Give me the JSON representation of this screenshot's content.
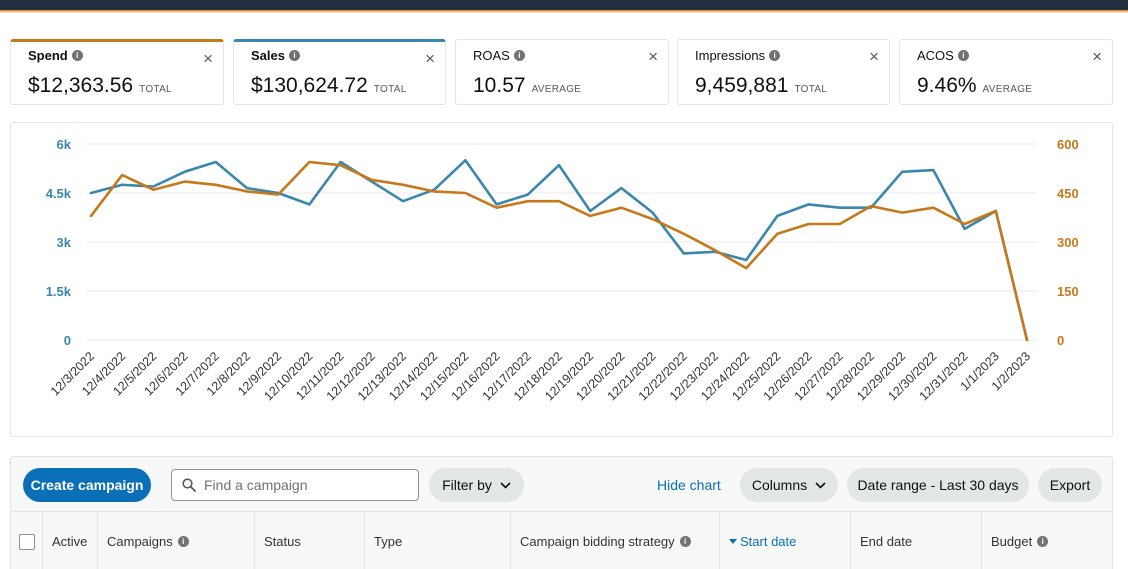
{
  "metrics": [
    {
      "label": "Spend",
      "value": "$12,363.56",
      "sub": "TOTAL",
      "close": "×",
      "info": "i"
    },
    {
      "label": "Sales",
      "value": "$130,624.72",
      "sub": "TOTAL",
      "close": "×",
      "info": "i"
    },
    {
      "label": "ROAS",
      "value": "10.57",
      "sub": "AVERAGE",
      "close": "×",
      "info": "i"
    },
    {
      "label": "Impressions",
      "value": "9,459,881",
      "sub": "TOTAL",
      "close": "×",
      "info": "i"
    },
    {
      "label": "ACOS",
      "value": "9.46%",
      "sub": "AVERAGE",
      "close": "×",
      "info": "i"
    }
  ],
  "colors": {
    "spend": "#c7781b",
    "sales": "#3a87ad",
    "primary": "#0b6fb8",
    "topbar": "#232f3e"
  },
  "chart_data": {
    "type": "line",
    "categories": [
      "12/3/2022",
      "12/4/2022",
      "12/5/2022",
      "12/6/2022",
      "12/7/2022",
      "12/8/2022",
      "12/9/2022",
      "12/10/2022",
      "12/11/2022",
      "12/12/2022",
      "12/13/2022",
      "12/14/2022",
      "12/15/2022",
      "12/16/2022",
      "12/17/2022",
      "12/18/2022",
      "12/19/2022",
      "12/20/2022",
      "12/21/2022",
      "12/22/2022",
      "12/23/2022",
      "12/24/2022",
      "12/25/2022",
      "12/26/2022",
      "12/27/2022",
      "12/28/2022",
      "12/29/2022",
      "12/30/2022",
      "12/31/2022",
      "1/1/2023",
      "1/2/2023"
    ],
    "left_axis": {
      "ticks": [
        "0",
        "1.5k",
        "3k",
        "4.5k",
        "6k"
      ],
      "ylim": [
        0,
        6000
      ],
      "color": "#3a87ad"
    },
    "right_axis": {
      "ticks": [
        "0",
        "150",
        "300",
        "450",
        "600"
      ],
      "ylim": [
        0,
        600
      ],
      "color": "#c7781b"
    },
    "grid": true,
    "series": [
      {
        "name": "Sales",
        "axis": "left",
        "color": "#3a87ad",
        "values": [
          4500,
          4750,
          4700,
          5150,
          5450,
          4650,
          4500,
          4150,
          5450,
          4850,
          4250,
          4600,
          5500,
          4150,
          4450,
          5350,
          3950,
          4650,
          3900,
          2650,
          2700,
          2450,
          3800,
          4150,
          4050,
          4050,
          5150,
          5200,
          3400,
          3950,
          0
        ]
      },
      {
        "name": "Spend",
        "axis": "right",
        "color": "#c7781b",
        "values": [
          380,
          505,
          460,
          485,
          475,
          455,
          445,
          545,
          535,
          490,
          475,
          455,
          450,
          405,
          425,
          425,
          380,
          405,
          370,
          325,
          275,
          220,
          325,
          355,
          355,
          410,
          390,
          405,
          355,
          395,
          0
        ]
      }
    ]
  },
  "toolbar": {
    "create_label": "Create campaign",
    "search_placeholder": "Find a campaign",
    "filter_label": "Filter by",
    "hide_chart_label": "Hide chart",
    "columns_label": "Columns",
    "date_range_label": "Date range - Last 30 days",
    "export_label": "Export"
  },
  "table": {
    "headers": [
      {
        "label": "Active",
        "info": false
      },
      {
        "label": "Campaigns",
        "info": true
      },
      {
        "label": "Status",
        "info": false
      },
      {
        "label": "Type",
        "info": false
      },
      {
        "label": "Campaign bidding strategy",
        "info": true
      },
      {
        "label": "Start date",
        "info": false,
        "sorted": true
      },
      {
        "label": "End date",
        "info": false
      },
      {
        "label": "Budget",
        "info": true
      }
    ]
  }
}
